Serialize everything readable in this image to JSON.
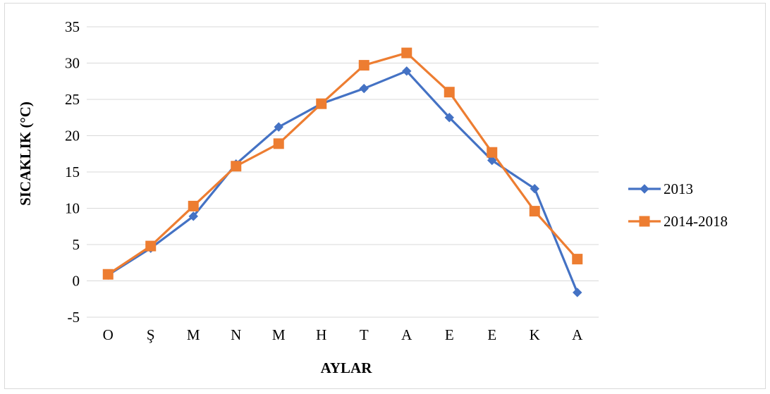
{
  "chart_data": {
    "type": "line",
    "title": "",
    "xlabel": "AYLAR",
    "ylabel": "SICAKLIK (°C)",
    "ylim": [
      -5,
      35
    ],
    "yticks": [
      -5,
      0,
      5,
      10,
      15,
      20,
      25,
      30,
      35
    ],
    "grid": true,
    "legend_position": "right",
    "categories": [
      "O",
      "Ş",
      "M",
      "N",
      "M",
      "H",
      "T",
      "A",
      "E",
      "E",
      "K",
      "A"
    ],
    "series": [
      {
        "name": "2013",
        "marker": "diamond",
        "color": "#4472C4",
        "values": [
          0.8,
          4.5,
          8.9,
          16.1,
          21.2,
          24.4,
          26.5,
          28.9,
          22.5,
          16.6,
          12.7,
          -1.6
        ]
      },
      {
        "name": "2014-2018",
        "marker": "square",
        "color": "#ED7D31",
        "values": [
          0.9,
          4.8,
          10.3,
          15.8,
          18.9,
          24.4,
          29.7,
          31.4,
          26.0,
          17.7,
          9.6,
          3.0
        ]
      }
    ]
  }
}
